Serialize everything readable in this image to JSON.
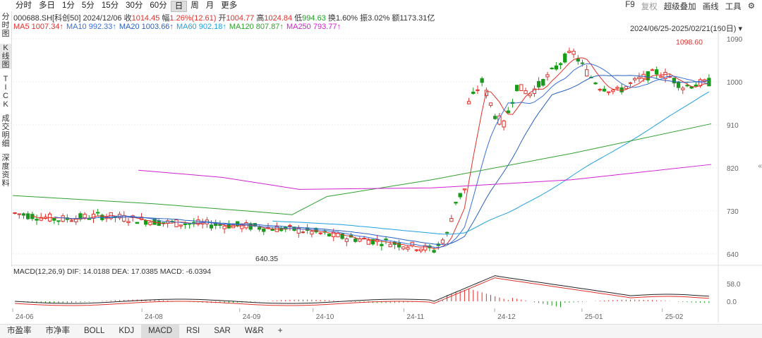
{
  "toolbar": {
    "periods": [
      "分时",
      "多日",
      "1分",
      "5分",
      "15分",
      "30分",
      "60分",
      "日",
      "周",
      "月",
      "更多"
    ],
    "active_period": "日",
    "right": [
      "F9",
      "复权",
      "超级叠加",
      "画线",
      "工具"
    ],
    "right_dim": "复权"
  },
  "sidebar": [
    "分时图",
    "K线图",
    "TICK",
    "成交明细",
    "深度资料"
  ],
  "quote": {
    "code": "000688.SH[科创50]",
    "date": "2024/12/06",
    "close_label": "收",
    "close": "1014.45",
    "change_label": "幅",
    "change": "1.26%(12.61)",
    "open_label": "开",
    "open": "1004.77",
    "high_label": "高",
    "high": "1024.84",
    "low_label": "低",
    "low": "994.63",
    "turnover_label": "换",
    "turnover": "1.60%",
    "amp_label": "振",
    "amp": "3.02%",
    "amount_label": "额",
    "amount": "1173.31亿"
  },
  "ma_legend": [
    {
      "name": "MA5",
      "value": "1007.34",
      "color": "#e0302a"
    },
    {
      "name": "MA10",
      "value": "992.33",
      "color": "#3a6fd8"
    },
    {
      "name": "MA20",
      "value": "1003.66",
      "color": "#2a60c0"
    },
    {
      "name": "MA60",
      "value": "902.18",
      "color": "#20a0e0"
    },
    {
      "name": "MA120",
      "value": "807.87",
      "color": "#30a030"
    },
    {
      "name": "MA250",
      "value": "793.77",
      "color": "#d020d0"
    }
  ],
  "date_range": "2024/06/25-2025/02/21(160日)",
  "chart_data": {
    "type": "candlestick",
    "y_ticks": [
      1090,
      1000,
      910,
      820,
      730,
      640
    ],
    "ylim": [
      625,
      1100
    ],
    "high_label": "1098.60",
    "low_label": "640.35",
    "x_ticks": [
      "24-06",
      "24-08",
      "24-09",
      "24-10",
      "24-11",
      "24-12",
      "25-01",
      "25-02"
    ],
    "macd": {
      "label": "MACD(12,26,9)",
      "dif_label": "DIF:",
      "dif": "14.0188",
      "dea_label": "DEA:",
      "dea": "17.0385",
      "macd_label": "MACD:",
      "macd": "-6.0394",
      "y_ticks": [
        "58.0",
        "0.0"
      ]
    }
  },
  "bottom_tabs": [
    "市盈率",
    "市净率",
    "BOLL",
    "KDJ",
    "MACD",
    "RSI",
    "SAR",
    "W&R",
    "+"
  ],
  "active_tab": "MACD"
}
